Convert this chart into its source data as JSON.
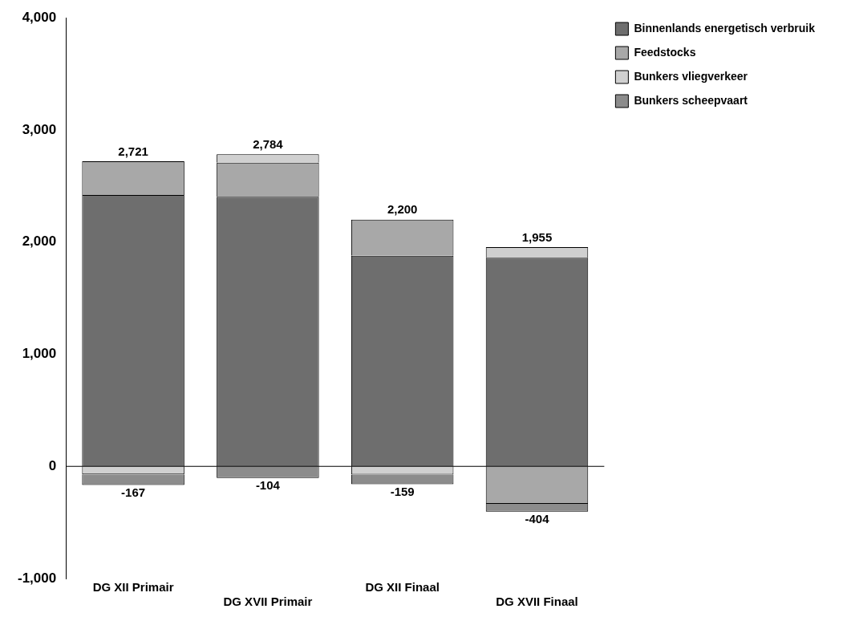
{
  "chart_data": {
    "type": "bar",
    "stacked": true,
    "categories": [
      "DG XII Primair",
      "DG XVII Primair",
      "DG XII Finaal",
      "DG XVII Finaal"
    ],
    "series": [
      {
        "name": "Binnenlands energetisch verbruik",
        "color": "#6e6e6e",
        "values": [
          2421,
          2404,
          1878,
          1860
        ]
      },
      {
        "name": "Feedstocks",
        "color": "#a8a8a8",
        "values": [
          300,
          305,
          322,
          -334
        ]
      },
      {
        "name": "Bunkers vliegverkeer",
        "color": "#d0d0d0",
        "values": [
          -72,
          75,
          -74,
          95
        ]
      },
      {
        "name": "Bunkers scheepvaart",
        "color": "#8c8c8c",
        "values": [
          -95,
          -104,
          -85,
          -70
        ]
      }
    ],
    "annotations": [
      {
        "text": "2,721",
        "x": "DG XII Primair",
        "y": 2721
      },
      {
        "text": "2,784",
        "x": "DG XVII Primair",
        "y": 2784
      },
      {
        "text": "2,200",
        "x": "DG XII Finaal",
        "y": 2200
      },
      {
        "text": "1,955",
        "x": "DG XVII Finaal",
        "y": 1955
      },
      {
        "text": "-167",
        "x": "DG XII Primair",
        "y": -167
      },
      {
        "text": "-104",
        "x": "DG XVII Primair",
        "y": -104
      },
      {
        "text": "-159",
        "x": "DG XII Finaal",
        "y": -159
      },
      {
        "text": "-404",
        "x": "DG XVII Finaal",
        "y": -404
      }
    ],
    "ylim": [
      -1000,
      4000
    ],
    "yticks": [
      {
        "value": -1000,
        "label": "-1,000"
      },
      {
        "value": 0,
        "label": "0"
      },
      {
        "value": 1000,
        "label": "1,000"
      },
      {
        "value": 2000,
        "label": "2,000"
      },
      {
        "value": 3000,
        "label": "3,000"
      },
      {
        "value": 4000,
        "label": "4,000"
      }
    ],
    "legend": "top right"
  }
}
